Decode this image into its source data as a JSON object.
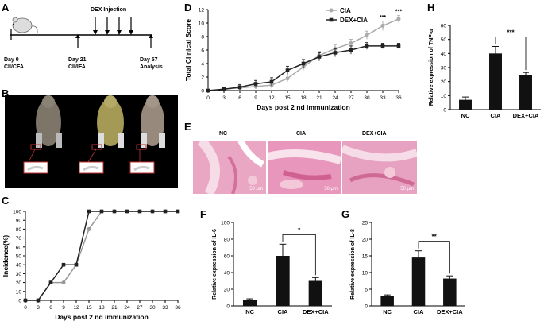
{
  "panels": {
    "A": {
      "label": "A",
      "injection_label": "DEX Injection",
      "timepoints": [
        {
          "day": "Day 0",
          "note": "CII/CFA"
        },
        {
          "day": "Day 21",
          "note": "CII/IFA"
        },
        {
          "day": "Day 57",
          "note": "Analysis"
        }
      ]
    },
    "B": {
      "label": "B"
    },
    "C": {
      "label": "C"
    },
    "D": {
      "label": "D"
    },
    "E": {
      "label": "E",
      "groups": [
        "NC",
        "CIA",
        "DEX+CIA"
      ],
      "scale": "50 μm"
    },
    "F": {
      "label": "F"
    },
    "G": {
      "label": "G"
    },
    "H": {
      "label": "H"
    }
  },
  "chart_data": [
    {
      "id": "C",
      "type": "line",
      "ylabel": "Incidence(%)",
      "xlabel": "Days post 2 nd immunization",
      "x": [
        0,
        3,
        6,
        9,
        12,
        15,
        18,
        21,
        24,
        27,
        30,
        33,
        36
      ],
      "ylim": [
        0,
        100
      ],
      "yticks": [
        0,
        10,
        20,
        30,
        40,
        50,
        60,
        70,
        80,
        90,
        100
      ],
      "xticks": [
        0,
        3,
        6,
        9,
        12,
        15,
        18,
        21,
        24,
        27,
        30,
        33,
        36
      ],
      "series": [
        {
          "color": "#999999",
          "values": [
            0,
            0,
            20,
            20,
            40,
            80,
            100,
            100,
            100,
            100,
            100,
            100,
            100
          ]
        },
        {
          "color": "#222222",
          "values": [
            0,
            0,
            20,
            40,
            40,
            100,
            100,
            100,
            100,
            100,
            100,
            100,
            100
          ]
        }
      ]
    },
    {
      "id": "D",
      "type": "line",
      "ylabel": "Total Clinical Score",
      "xlabel": "Days post 2 nd immunization",
      "x": [
        0,
        3,
        6,
        9,
        12,
        15,
        18,
        21,
        24,
        27,
        30,
        33,
        36
      ],
      "ylim": [
        0,
        12
      ],
      "yticks": [
        0,
        2,
        4,
        6,
        8,
        10,
        12
      ],
      "xticks": [
        0,
        3,
        6,
        9,
        12,
        15,
        18,
        21,
        24,
        27,
        30,
        33,
        36
      ],
      "legend": [
        "CIA",
        "DEX+CIA"
      ],
      "annotations": [
        "***",
        "***"
      ],
      "series": [
        {
          "name": "CIA",
          "color": "#aaaaaa",
          "values": [
            0,
            0.2,
            0.4,
            0.6,
            0.8,
            1.8,
            3.5,
            5.2,
            6.2,
            7.0,
            8.2,
            9.6,
            10.6
          ],
          "err": [
            0,
            0.3,
            0.3,
            0.4,
            0.5,
            0.5,
            0.5,
            0.6,
            0.6,
            0.6,
            0.6,
            0.7,
            0.5
          ]
        },
        {
          "name": "DEX+CIA",
          "color": "#222222",
          "values": [
            0,
            0.2,
            0.5,
            1.0,
            1.3,
            3.0,
            4.0,
            5.0,
            5.6,
            6.0,
            6.6,
            6.6,
            6.6
          ],
          "err": [
            0,
            0.3,
            0.4,
            0.5,
            0.6,
            0.6,
            0.6,
            0.6,
            0.6,
            0.6,
            0.5,
            0.4,
            0.4
          ]
        }
      ]
    },
    {
      "id": "F",
      "type": "bar",
      "ylabel": "Relative expression of IL-6",
      "categories": [
        "NC",
        "CIA",
        "DEX+CIA"
      ],
      "values": [
        7,
        60,
        30
      ],
      "err": [
        1.5,
        14,
        4
      ],
      "ylim": [
        0,
        100
      ],
      "yticks": [
        0,
        20,
        40,
        60,
        80,
        100
      ],
      "significance": "*"
    },
    {
      "id": "G",
      "type": "bar",
      "ylabel": "Relative expression of IL-8",
      "categories": [
        "NC",
        "CIA",
        "DEX+CIA"
      ],
      "values": [
        3,
        14.5,
        8.2
      ],
      "err": [
        0.3,
        2,
        0.8
      ],
      "ylim": [
        0,
        25
      ],
      "yticks": [
        0,
        5,
        10,
        15,
        20,
        25
      ],
      "significance": "**"
    },
    {
      "id": "H",
      "type": "bar",
      "ylabel": "Relative expression of TNF-α",
      "categories": [
        "NC",
        "CIA",
        "DEX+CIA"
      ],
      "values": [
        7,
        40,
        24.5
      ],
      "err": [
        2,
        5,
        2
      ],
      "ylim": [
        0,
        60
      ],
      "yticks": [
        0,
        10,
        20,
        30,
        40,
        50,
        60
      ],
      "significance": "***"
    }
  ]
}
